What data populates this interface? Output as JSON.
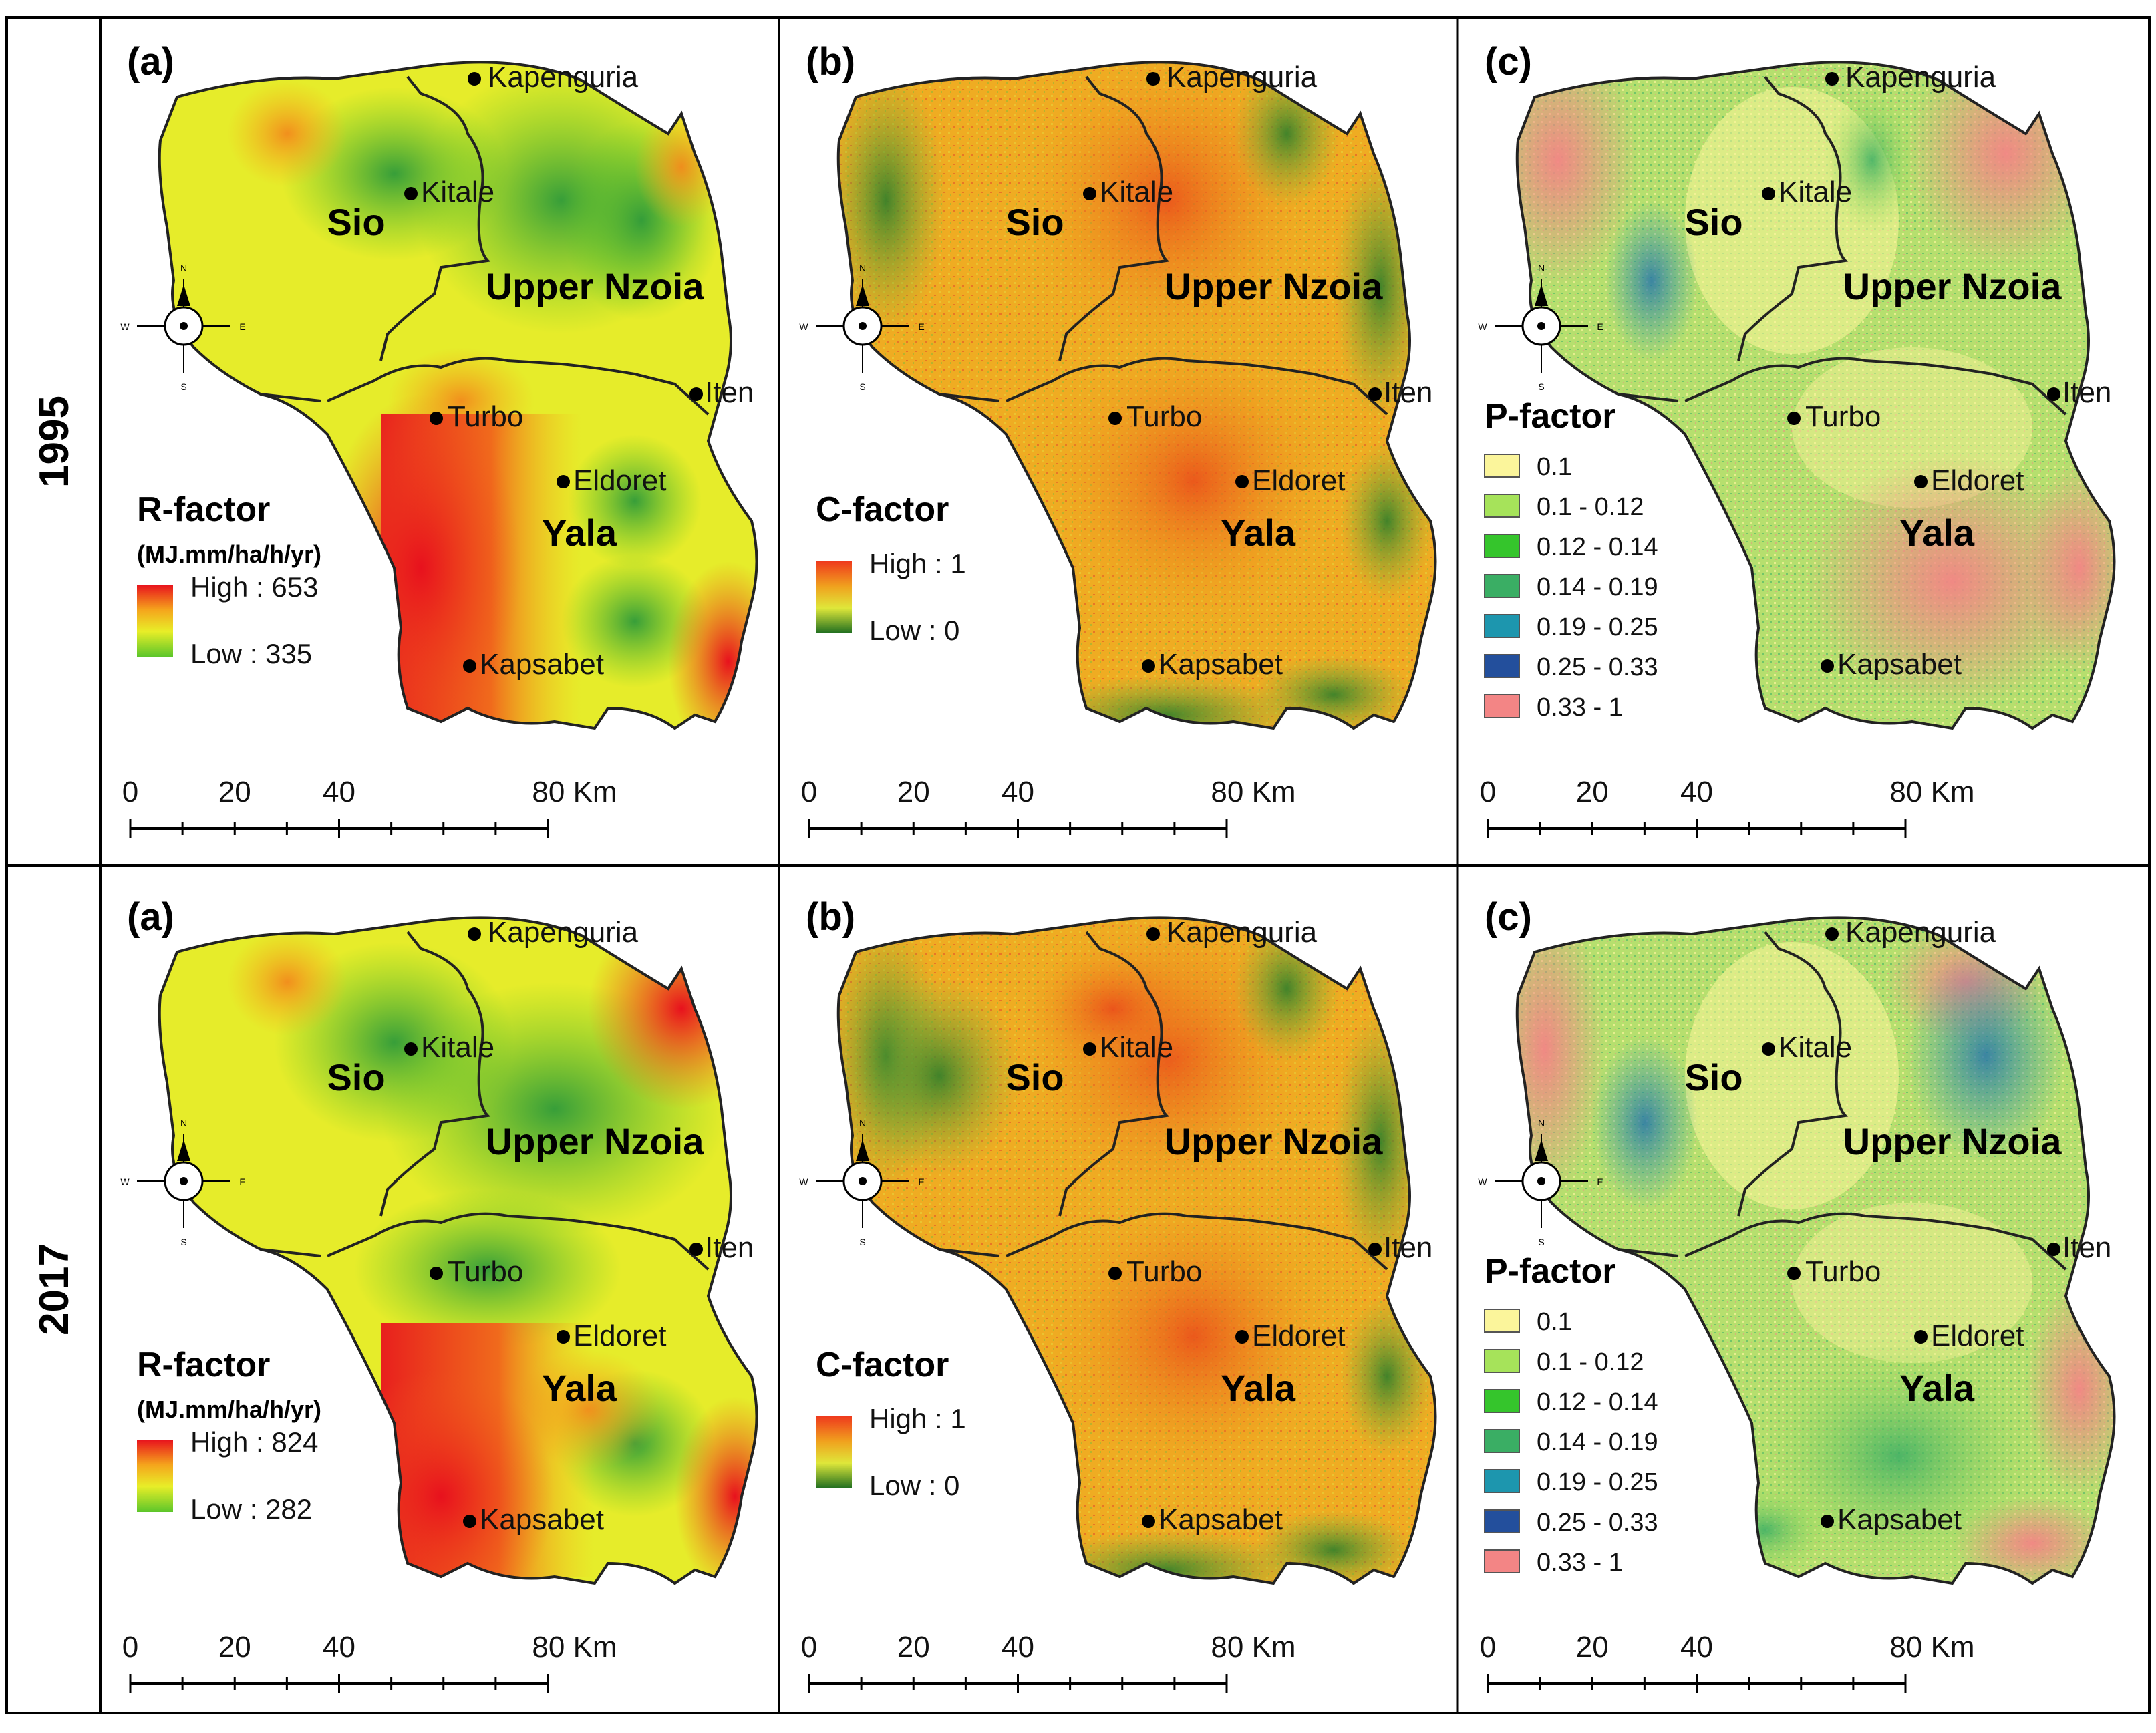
{
  "figure": {
    "rows": [
      {
        "year": "1995"
      },
      {
        "year": "2017"
      }
    ],
    "columns": [
      {
        "letter": "(a)",
        "legend_type": "gradient",
        "legend_title": "R-factor",
        "legend_unit": "(MJ.mm/ha/h/yr)",
        "ramp_colors": [
          "#e8111d",
          "#f5a51c",
          "#e8ee28",
          "#5cc62a"
        ]
      },
      {
        "letter": "(b)",
        "legend_type": "gradient",
        "legend_title": "C-factor",
        "legend_unit": "",
        "ramp_colors": [
          "#ef3a1d",
          "#f0a21e",
          "#dfe73a",
          "#1f6e20"
        ]
      },
      {
        "letter": "(c)",
        "legend_type": "classes",
        "legend_title": "P-factor",
        "legend_unit": ""
      }
    ],
    "r_factor_legend": [
      {
        "high": "High : 653",
        "low": "Low : 335"
      },
      {
        "high": "High : 824",
        "low": "Low : 282"
      }
    ],
    "c_factor_legend": {
      "high": "High : 1",
      "low": "Low : 0"
    },
    "p_factor_classes": [
      {
        "label": "0.1",
        "color": "#fbf59b"
      },
      {
        "label": "0.1 - 0.12",
        "color": "#a6e35a"
      },
      {
        "label": "0.12 - 0.14",
        "color": "#35c52c"
      },
      {
        "label": "0.14 - 0.19",
        "color": "#3aae64"
      },
      {
        "label": "0.19 - 0.25",
        "color": "#1d96ae"
      },
      {
        "label": "0.25 - 0.33",
        "color": "#234f9c"
      },
      {
        "label": "0.33 - 1",
        "color": "#f38585"
      }
    ],
    "basins": [
      "Sio",
      "Upper Nzoia",
      "Yala"
    ],
    "towns": [
      "Kapenguria",
      "Kitale",
      "Iten",
      "Turbo",
      "Eldoret",
      "Kapsabet"
    ],
    "compass": {
      "n": "N",
      "s": "S",
      "e": "E",
      "w": "W"
    },
    "scale_bar": {
      "ticks": [
        "0",
        "20",
        "40",
        "80 Km"
      ]
    },
    "colors": {
      "border": "#000000",
      "r_green": "#5cc62a",
      "r_yellow": "#e8ee28",
      "r_red": "#e8111d",
      "c_base": "#f0a21e",
      "c_dark": "#1f6e20"
    }
  }
}
